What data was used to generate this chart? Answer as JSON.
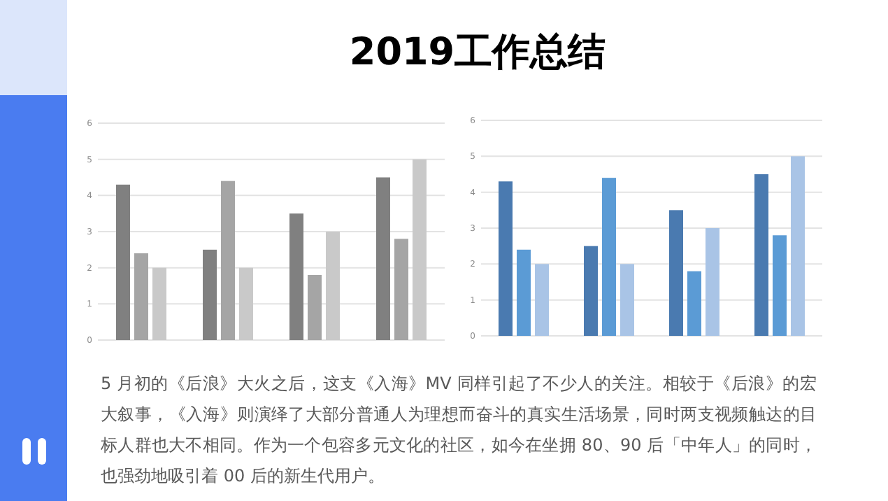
{
  "chart_data": [
    {
      "type": "other",
      "title": "2019工作总结"
    },
    {
      "type": "bar",
      "categories": [
        null,
        null,
        null,
        null
      ],
      "ylim": [
        0,
        6
      ],
      "yticks": [
        0,
        1,
        2,
        3,
        4,
        5,
        6
      ],
      "grid": "y",
      "series": [
        {
          "color": "#808080",
          "values": [
            4.3,
            2.5,
            3.5,
            4.5
          ]
        },
        {
          "color": "#a5a5a5",
          "values": [
            2.4,
            4.4,
            1.8,
            2.8
          ]
        },
        {
          "color": "#c9c9c9",
          "values": [
            2.0,
            2.0,
            3.0,
            5.0
          ]
        }
      ]
    },
    {
      "type": "bar",
      "categories": [
        null,
        null,
        null,
        null
      ],
      "ylim": [
        0,
        6
      ],
      "yticks": [
        0,
        1,
        2,
        3,
        4,
        5,
        6
      ],
      "grid": "y",
      "series": [
        {
          "color": "#4a7ab0",
          "values": [
            4.3,
            2.5,
            3.5,
            4.5
          ]
        },
        {
          "color": "#5b9bd5",
          "values": [
            2.4,
            4.4,
            1.8,
            2.8
          ]
        },
        {
          "color": "#a9c4e6",
          "values": [
            2.0,
            2.0,
            3.0,
            5.0
          ]
        }
      ]
    },
    {
      "type": "other",
      "annotations": [
        "5 月初的《后浪》大火之后，这支《入海》MV 同样引起了不少人的关注。相较于《后浪》的宏大叙事，《入海》则演绎了大部分普通人为理想而奋斗的真实生活场景，同时两支视频触达的目标人群也大不相同。作为一个包容多元文化的社区，如今在坐拥 80、90 后「中年人」的同时，也强劲地吸引着 00 后的新生代用户。"
      ]
    }
  ]
}
